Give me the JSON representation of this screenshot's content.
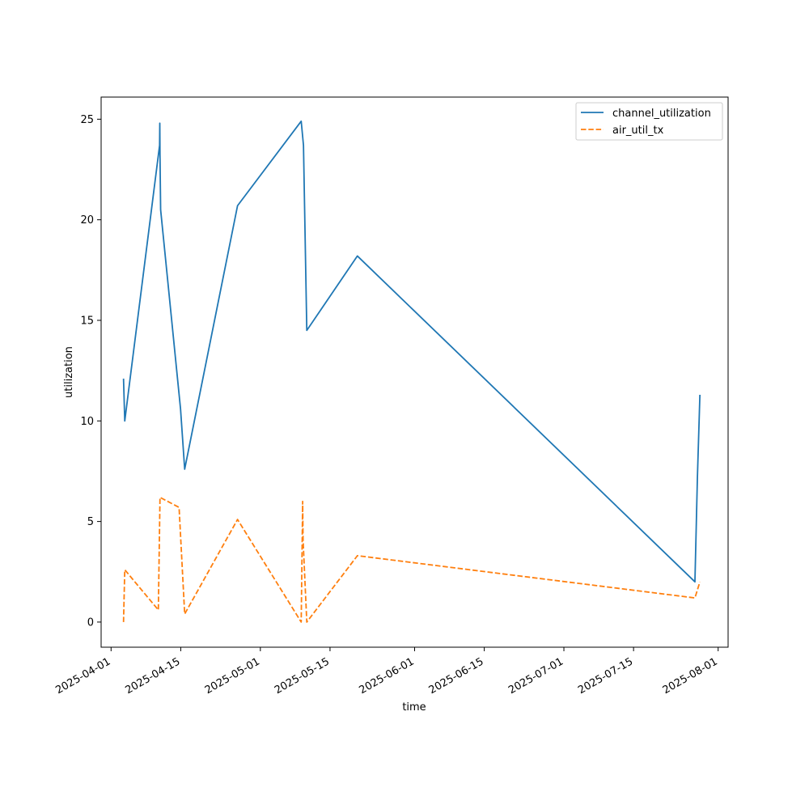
{
  "chart_data": {
    "type": "line",
    "title": "",
    "xlabel": "time",
    "ylabel": "utilization",
    "x_axis_type": "date",
    "xlim": [
      "2025-03-30",
      "2025-08-03"
    ],
    "ylim": [
      -1.25,
      26.1
    ],
    "x_ticks": [
      "2025-04-01",
      "2025-04-15",
      "2025-05-01",
      "2025-05-15",
      "2025-06-01",
      "2025-06-15",
      "2025-07-01",
      "2025-07-15",
      "2025-08-01"
    ],
    "y_ticks": [
      0,
      5,
      10,
      15,
      20,
      25
    ],
    "grid": false,
    "legend_position": "top-right",
    "series": [
      {
        "name": "channel_utilization",
        "color": "#1f77b4",
        "dash": "solid",
        "points": [
          [
            "2025-04-03T12:00",
            12.1
          ],
          [
            "2025-04-03T18:00",
            10.0
          ],
          [
            "2025-04-10T18:00",
            23.7
          ],
          [
            "2025-04-10T19:00",
            24.8
          ],
          [
            "2025-04-10T20:00",
            23.2
          ],
          [
            "2025-04-10T23:00",
            20.5
          ],
          [
            "2025-04-14T23:00",
            10.6
          ],
          [
            "2025-04-15T19:00",
            7.6
          ],
          [
            "2025-04-26T10:00",
            20.7
          ],
          [
            "2025-05-09T05:00",
            24.9
          ],
          [
            "2025-05-09T16:00",
            23.7
          ],
          [
            "2025-05-10T08:00",
            14.5
          ],
          [
            "2025-05-20T12:00",
            18.2
          ],
          [
            "2025-07-27T08:00",
            2.0
          ],
          [
            "2025-07-27T20:00",
            7.2
          ],
          [
            "2025-07-28T08:00",
            11.3
          ]
        ]
      },
      {
        "name": "air_util_tx",
        "color": "#ff7f0e",
        "dash": "dashed",
        "points": [
          [
            "2025-04-03T12:00",
            0.0
          ],
          [
            "2025-04-03T18:00",
            2.6
          ],
          [
            "2025-04-10T12:00",
            0.6
          ],
          [
            "2025-04-10T20:00",
            6.2
          ],
          [
            "2025-04-14T16:00",
            5.7
          ],
          [
            "2025-04-15T19:00",
            0.4
          ],
          [
            "2025-04-26T10:00",
            5.1
          ],
          [
            "2025-05-09T05:00",
            0.0
          ],
          [
            "2025-05-09T12:00",
            6.0
          ],
          [
            "2025-05-09T14:00",
            4.1
          ],
          [
            "2025-05-10T08:00",
            0.0
          ],
          [
            "2025-05-20T12:00",
            3.3
          ],
          [
            "2025-07-27T08:00",
            1.2
          ],
          [
            "2025-07-28T08:00",
            2.0
          ]
        ]
      }
    ]
  }
}
